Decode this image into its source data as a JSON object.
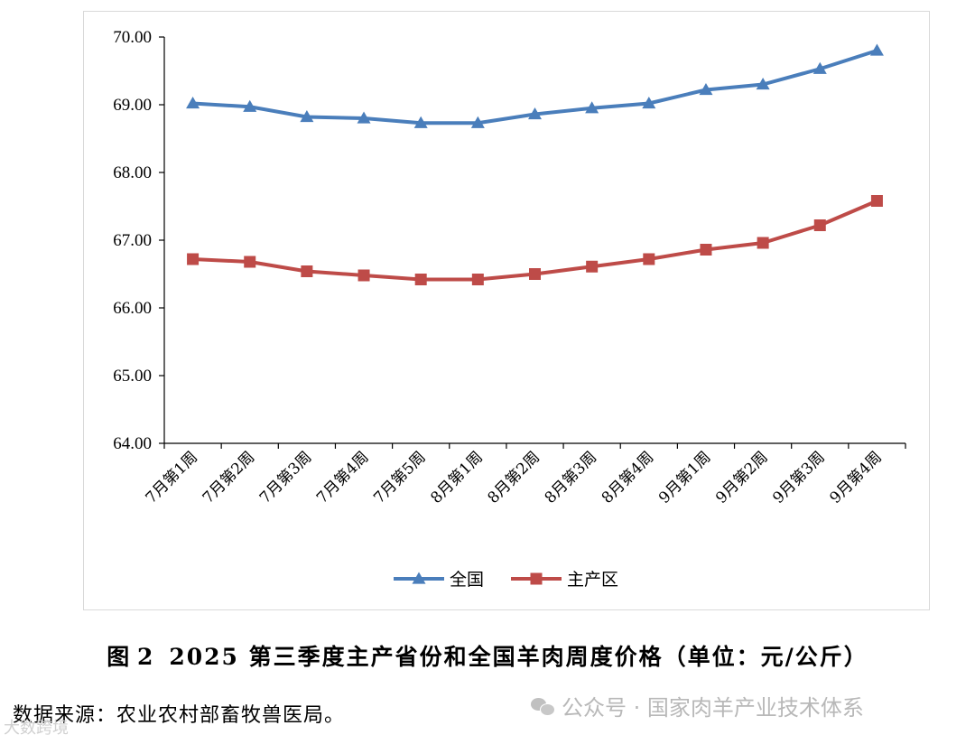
{
  "chart_data": {
    "type": "line",
    "categories": [
      "7月第1周",
      "7月第2周",
      "7月第3周",
      "7月第4周",
      "7月第5周",
      "8月第1周",
      "8月第2周",
      "8月第3周",
      "8月第4周",
      "9月第1周",
      "9月第2周",
      "9月第3周",
      "9月第4周"
    ],
    "series": [
      {
        "name": "全国",
        "color": "#4a7ebb",
        "marker": "triangle",
        "values": [
          69.02,
          68.97,
          68.82,
          68.8,
          68.73,
          68.73,
          68.86,
          68.95,
          69.02,
          69.22,
          69.3,
          69.53,
          69.8
        ]
      },
      {
        "name": "主产区",
        "color": "#be4b48",
        "marker": "square",
        "values": [
          66.72,
          66.68,
          66.54,
          66.48,
          66.42,
          66.42,
          66.5,
          66.61,
          66.72,
          66.86,
          66.96,
          67.22,
          67.58
        ]
      }
    ],
    "ylim": [
      64.0,
      70.0
    ],
    "yticks": [
      "64.00",
      "65.00",
      "66.00",
      "67.00",
      "68.00",
      "69.00",
      "70.00"
    ],
    "legend_position": "bottom"
  },
  "caption": {
    "figure_number": "图 2",
    "text": "2025 第三季度主产省份和全国羊肉周度价格（单位：元/公斤）"
  },
  "source_note": "数据来源：农业农村部畜牧兽医局。",
  "watermark": "公众号 · 国家肉羊产业技术体系",
  "corner_mark": "大数跨境"
}
